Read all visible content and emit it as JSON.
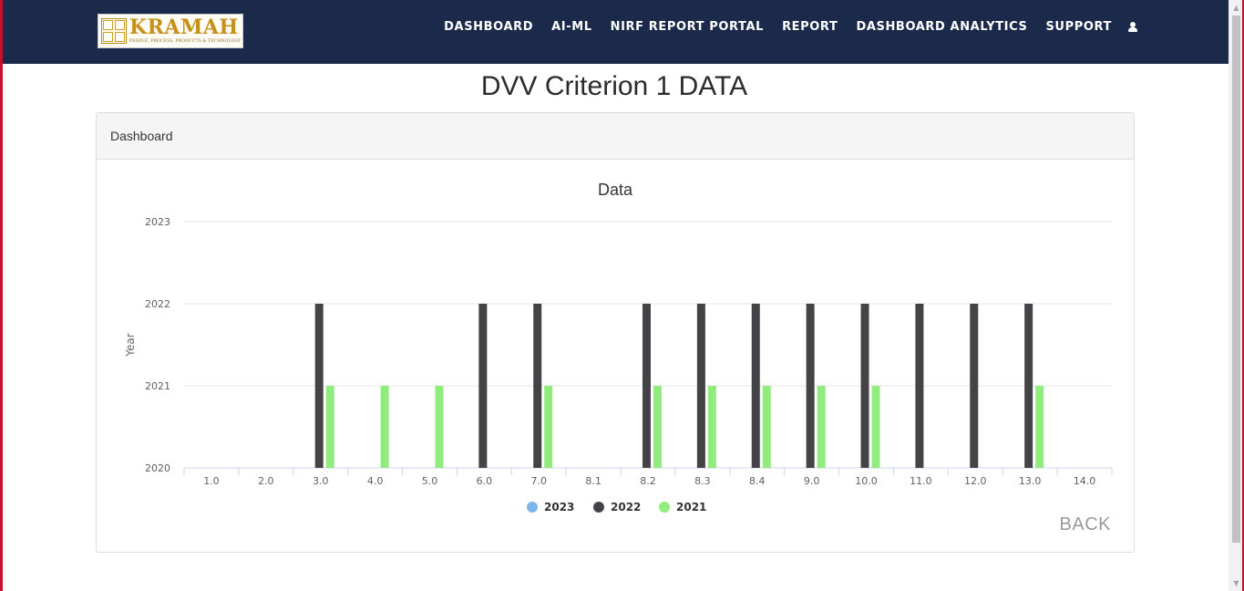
{
  "brand": {
    "name": "KRAMAH",
    "tagline": "PEOPLE, PROCESS, PRODUCTS & TECHNOLOGY"
  },
  "nav": {
    "items": [
      {
        "label": "DASHBOARD"
      },
      {
        "label": "AI-ML"
      },
      {
        "label": "NIRF REPORT PORTAL"
      },
      {
        "label": "REPORT"
      },
      {
        "label": "DASHBOARD ANALYTICS"
      },
      {
        "label": "SUPPORT"
      }
    ],
    "user_icon": "user-icon"
  },
  "page": {
    "title": "DVV Criterion 1 DATA"
  },
  "panel": {
    "heading": "Dashboard",
    "back_label": "BACK"
  },
  "colors": {
    "navbar": "#1b2a4a",
    "series_2023": "#7cb5ec",
    "series_2022": "#434348",
    "series_2021": "#90ed7d"
  },
  "chart_data": {
    "type": "bar",
    "title": "Data",
    "xlabel": "",
    "ylabel": "Year",
    "ylim": [
      2020,
      2023
    ],
    "yticks": [
      "2020",
      "2021",
      "2022",
      "2023"
    ],
    "grid": true,
    "legend_position": "bottom-center",
    "categories": [
      "1.0",
      "2.0",
      "3.0",
      "4.0",
      "5.0",
      "6.0",
      "7.0",
      "8.1",
      "8.2",
      "8.3",
      "8.4",
      "9.0",
      "10.0",
      "11.0",
      "12.0",
      "13.0",
      "14.0"
    ],
    "series": [
      {
        "name": "2023",
        "color": "#7cb5ec",
        "values": [
          null,
          null,
          null,
          null,
          null,
          null,
          null,
          null,
          null,
          null,
          null,
          null,
          null,
          null,
          null,
          null,
          null
        ]
      },
      {
        "name": "2022",
        "color": "#434348",
        "values": [
          null,
          null,
          2022,
          null,
          null,
          2022,
          2022,
          null,
          2022,
          2022,
          2022,
          2022,
          2022,
          2022,
          2022,
          2022,
          null
        ]
      },
      {
        "name": "2021",
        "color": "#90ed7d",
        "values": [
          null,
          null,
          2021,
          2021,
          2021,
          null,
          2021,
          null,
          2021,
          2021,
          2021,
          2021,
          2021,
          null,
          null,
          2021,
          null
        ]
      }
    ]
  }
}
